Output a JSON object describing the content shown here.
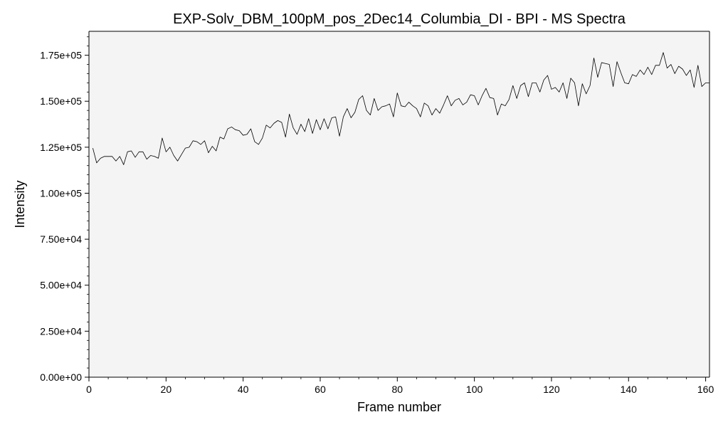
{
  "chart_data": {
    "type": "line",
    "title": "EXP-Solv_DBM_100pM_pos_2Dec14_Columbia_DI - BPI - MS Spectra",
    "xlabel": "Frame number",
    "ylabel": "Intensity",
    "xlim": [
      0,
      161
    ],
    "ylim": [
      0,
      188000
    ],
    "xticks": [
      0,
      20,
      40,
      60,
      80,
      100,
      120,
      140,
      160
    ],
    "xtick_labels": [
      "0",
      "20",
      "40",
      "60",
      "80",
      "100",
      "120",
      "140",
      "160"
    ],
    "yticks": [
      0,
      25000,
      50000,
      75000,
      100000,
      125000,
      150000,
      175000
    ],
    "ytick_labels": [
      "0.00e+00",
      "2.50e+04",
      "5.00e+04",
      "7.50e+04",
      "1.00e+05",
      "1.25e+05",
      "1.50e+05",
      "1.75e+05"
    ],
    "grid": false,
    "colors": {
      "plot_background": "#f4f4f4",
      "line": "#000000"
    },
    "series": [
      {
        "x": [
          1,
          2,
          3,
          4,
          5,
          6,
          7,
          8,
          9,
          10,
          11,
          12,
          13,
          14,
          15,
          16,
          17,
          18,
          19,
          20,
          21,
          22,
          23,
          24,
          25,
          26,
          27,
          28,
          29,
          30,
          31,
          32,
          33,
          34,
          35,
          36,
          37,
          38,
          39,
          40,
          41,
          42,
          43,
          44,
          45,
          46,
          47,
          48,
          49,
          50,
          51,
          52,
          53,
          54,
          55,
          56,
          57,
          58,
          59,
          60,
          61,
          62,
          63,
          64,
          65,
          66,
          67,
          68,
          69,
          70,
          71,
          72,
          73,
          74,
          75,
          76,
          77,
          78,
          79,
          80,
          81,
          82,
          83,
          84,
          85,
          86,
          87,
          88,
          89,
          90,
          91,
          92,
          93,
          94,
          95,
          96,
          97,
          98,
          99,
          100,
          101,
          102,
          103,
          104,
          105,
          106,
          107,
          108,
          109,
          110,
          111,
          112,
          113,
          114,
          115,
          116,
          117,
          118,
          119,
          120,
          121,
          122,
          123,
          124,
          125,
          126,
          127,
          128,
          129,
          130,
          131,
          132,
          133,
          134,
          135,
          136,
          137,
          138,
          139,
          140,
          141,
          142,
          143,
          144,
          145,
          146,
          147,
          148,
          149,
          150,
          151,
          152,
          153,
          154,
          155,
          156,
          157,
          158,
          159,
          160,
          161
        ],
        "y": [
          124500,
          116500,
          119000,
          120000,
          120000,
          120000,
          117500,
          120000,
          115500,
          122500,
          123000,
          119500,
          122500,
          122500,
          118500,
          120500,
          120000,
          119000,
          130000,
          122500,
          125000,
          120500,
          117500,
          121000,
          124500,
          125000,
          128500,
          128000,
          126500,
          128500,
          122000,
          125500,
          123000,
          130500,
          129500,
          135000,
          136000,
          134500,
          134000,
          131500,
          132000,
          135000,
          128000,
          126500,
          130000,
          137000,
          135500,
          138000,
          139500,
          138500,
          130500,
          143000,
          135500,
          132000,
          137500,
          133500,
          140500,
          132500,
          140000,
          134500,
          140500,
          135000,
          141000,
          141500,
          131000,
          141500,
          146000,
          141000,
          144000,
          151000,
          153000,
          145000,
          142500,
          151500,
          145000,
          147000,
          147500,
          148500,
          141500,
          154500,
          147500,
          147000,
          149500,
          147500,
          146000,
          141500,
          149000,
          147500,
          142500,
          146000,
          143500,
          148000,
          153000,
          147500,
          150500,
          151500,
          148000,
          149500,
          153500,
          153000,
          148000,
          153000,
          157000,
          152000,
          151500,
          142500,
          148500,
          147500,
          151000,
          158500,
          151500,
          158500,
          160000,
          152500,
          160000,
          160000,
          155000,
          161500,
          164000,
          156500,
          157500,
          155000,
          160000,
          151500,
          162500,
          160000,
          147500,
          159500,
          154000,
          158500,
          173500,
          163000,
          171000,
          170500,
          170000,
          158000,
          171500,
          165500,
          160000,
          159500,
          164500,
          163500,
          167000,
          164500,
          168500,
          164500,
          169500,
          169500,
          176500,
          168000,
          170000,
          165000,
          169000,
          167500,
          164000,
          167000,
          157500,
          169500,
          158000,
          160000,
          160000
        ]
      }
    ]
  }
}
